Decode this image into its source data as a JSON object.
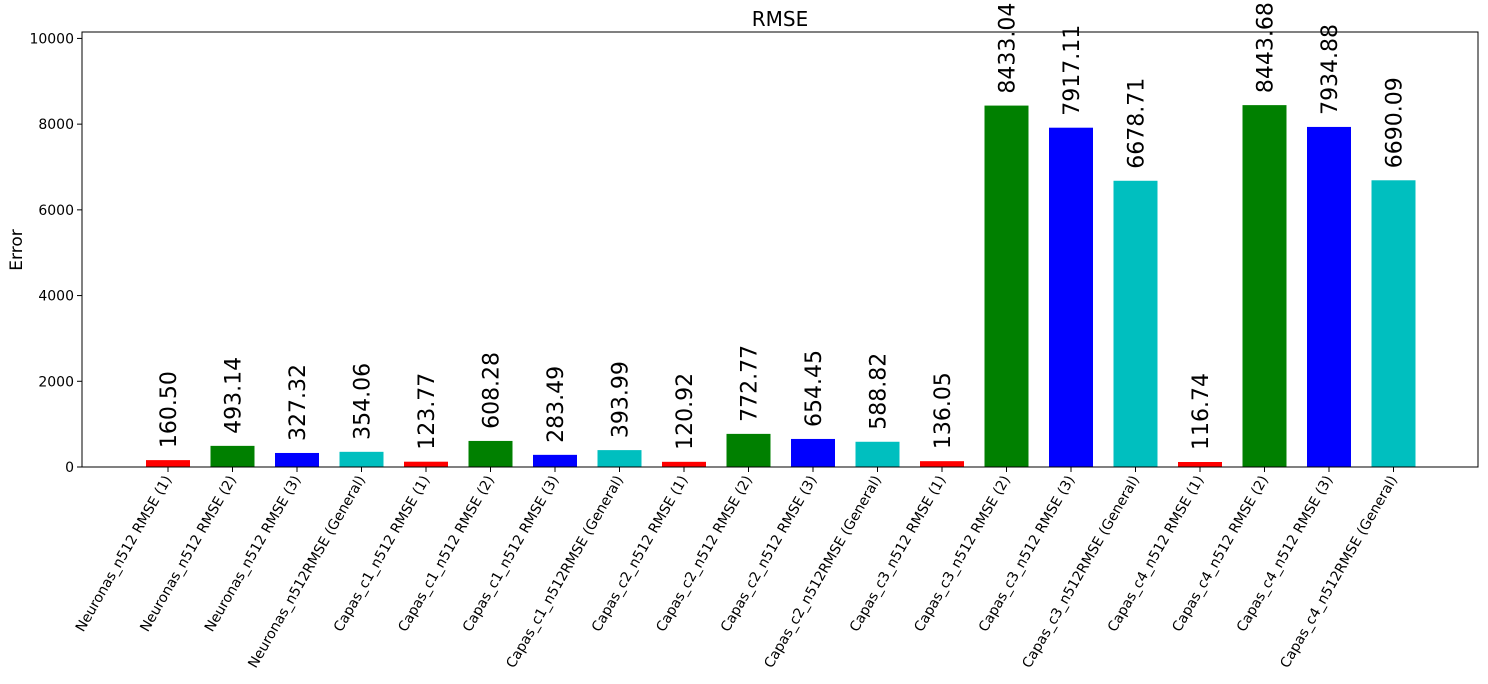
{
  "chart_data": {
    "type": "bar",
    "title": "RMSE",
    "xlabel": "",
    "ylabel": "Error",
    "ylim": [
      0,
      10150
    ],
    "yticks": [
      "0",
      "2000",
      "4000",
      "6000",
      "8000",
      "10000"
    ],
    "ytick_values": [
      0,
      2000,
      4000,
      6000,
      8000,
      10000
    ],
    "grid": false,
    "legend": "none",
    "colors": {
      "red": "#ff0000",
      "green": "#008000",
      "blue": "#0000ff",
      "cyan": "#00bfbf"
    },
    "categories": [
      "Neuronas_n512 RMSE (1)",
      "Neuronas_n512 RMSE (2)",
      "Neuronas_n512 RMSE (3)",
      "Neuronas_n512RMSE (General)",
      "Capas_c1_n512 RMSE (1)",
      "Capas_c1_n512 RMSE (2)",
      "Capas_c1_n512 RMSE (3)",
      "Capas_c1_n512RMSE (General)",
      "Capas_c2_n512 RMSE (1)",
      "Capas_c2_n512 RMSE (2)",
      "Capas_c2_n512 RMSE (3)",
      "Capas_c2_n512RMSE (General)",
      "Capas_c3_n512 RMSE (1)",
      "Capas_c3_n512 RMSE (2)",
      "Capas_c3_n512 RMSE (3)",
      "Capas_c3_n512RMSE (General)",
      "Capas_c4_n512 RMSE (1)",
      "Capas_c4_n512 RMSE (2)",
      "Capas_c4_n512 RMSE (3)",
      "Capas_c4_n512RMSE (General)"
    ],
    "values": [
      160.5,
      493.14,
      327.32,
      354.06,
      123.77,
      608.28,
      283.49,
      393.99,
      120.92,
      772.77,
      654.45,
      588.82,
      136.05,
      8433.04,
      7917.11,
      6678.71,
      116.74,
      8443.68,
      7934.88,
      6690.09
    ],
    "value_labels": [
      "160.50",
      "493.14",
      "327.32",
      "354.06",
      "123.77",
      "608.28",
      "283.49",
      "393.99",
      "120.92",
      "772.77",
      "654.45",
      "588.82",
      "136.05",
      "8433.04",
      "7917.11",
      "6678.71",
      "116.74",
      "8443.68",
      "7934.88",
      "6690.09"
    ],
    "bar_colors": [
      "red",
      "green",
      "blue",
      "cyan",
      "red",
      "green",
      "blue",
      "cyan",
      "red",
      "green",
      "blue",
      "cyan",
      "red",
      "green",
      "blue",
      "cyan",
      "red",
      "green",
      "blue",
      "cyan"
    ]
  }
}
